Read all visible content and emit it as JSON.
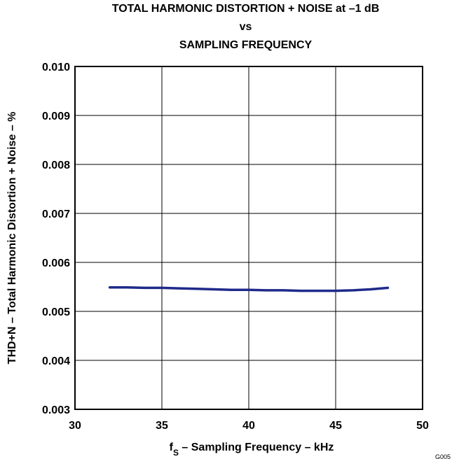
{
  "chart_data": {
    "type": "line",
    "title_lines": [
      "TOTAL HARMONIC DISTORTION + NOISE at –1 dB",
      "vs",
      "SAMPLING FREQUENCY"
    ],
    "xlabel_main": "f",
    "xlabel_sub": "S",
    "xlabel_rest": " – Sampling Frequency – kHz",
    "ylabel": "THD+N – Total Harmonic Distortion + Noise – %",
    "xlim": [
      30,
      50
    ],
    "ylim": [
      0.003,
      0.01
    ],
    "x_ticks": [
      "30",
      "35",
      "40",
      "45",
      "50"
    ],
    "y_ticks": [
      "0.003",
      "0.004",
      "0.005",
      "0.006",
      "0.007",
      "0.008",
      "0.009",
      "0.010"
    ],
    "grid": true,
    "figure_code": "G005",
    "series": [
      {
        "color": "#1f2a8a",
        "x": [
          32,
          33,
          34,
          35,
          36,
          37,
          38,
          39,
          40,
          41,
          42,
          43,
          44,
          45,
          46,
          47,
          48
        ],
        "y": [
          0.00549,
          0.00549,
          0.00548,
          0.00548,
          0.00547,
          0.00546,
          0.00545,
          0.00544,
          0.00544,
          0.00543,
          0.00543,
          0.00542,
          0.00542,
          0.00542,
          0.00543,
          0.00545,
          0.00548
        ]
      }
    ]
  }
}
